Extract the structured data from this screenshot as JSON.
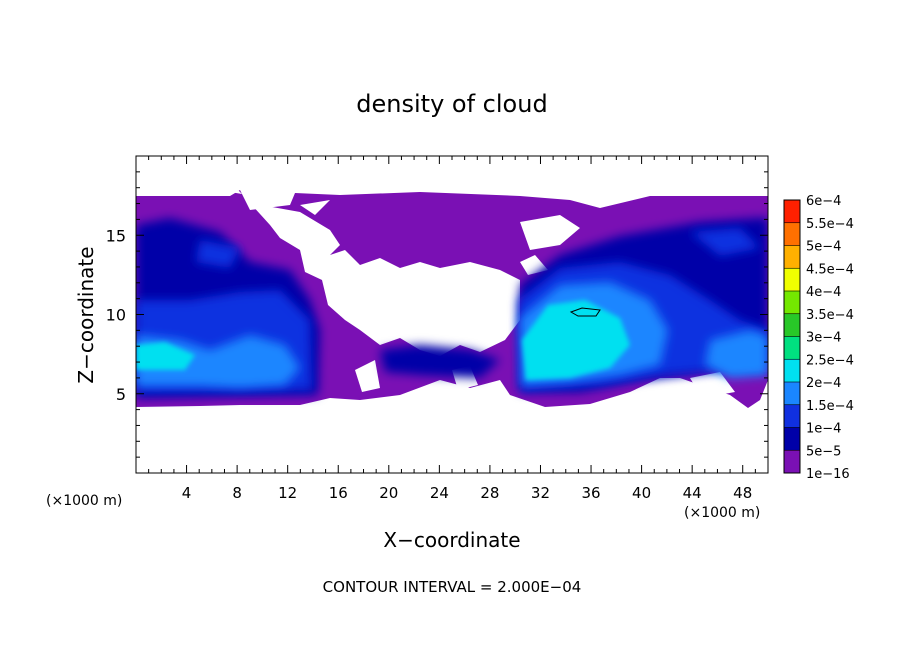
{
  "chart_data": {
    "type": "heatmap",
    "title": "density of cloud",
    "xlabel": "X−coordinate",
    "ylabel": "Z−coordinate",
    "x_unit_left": "(×1000 m)",
    "x_unit_right": "(×1000 m)",
    "xlim": [
      0,
      50
    ],
    "ylim": [
      0,
      20
    ],
    "x_ticks": [
      4,
      8,
      12,
      16,
      20,
      24,
      28,
      32,
      36,
      40,
      44,
      48
    ],
    "x_tick_labels": [
      "4",
      "8",
      "12",
      "16",
      "20",
      "24",
      "28",
      "32",
      "36",
      "40",
      "44",
      "48"
    ],
    "y_ticks": [
      5,
      10,
      15
    ],
    "y_tick_labels": [
      "5",
      "10",
      "15"
    ],
    "colorbar": {
      "levels": [
        "1e−16",
        "5e−5",
        "1e−4",
        "1.5e−4",
        "2e−4",
        "2.5e−4",
        "3e−4",
        "3.5e−4",
        "4e−4",
        "4.5e−4",
        "5e−4",
        "5.5e−4",
        "6e−4"
      ],
      "colors": [
        "#7a10b4",
        "#0000a8",
        "#1030e0",
        "#1a86ff",
        "#00e0f0",
        "#00e080",
        "#28c828",
        "#74e800",
        "#f0ff00",
        "#ffb000",
        "#ff7000",
        "#ff2000",
        "#ff8080"
      ]
    },
    "footnote": "CONTOUR INTERVAL = 2.000E−04",
    "field_description_regions": [
      {
        "level": "1e-16",
        "color": "#7a10b4",
        "extent_x": [
          0,
          50
        ],
        "extent_z": [
          4.2,
          17.4
        ]
      },
      {
        "level": "5e-5",
        "color": "#0000a8",
        "extent_x": [
          0,
          16
        ],
        "extent_z": [
          4.5,
          15.5
        ]
      },
      {
        "level": "1.5e-4",
        "color": "#1a86ff",
        "extent_x": [
          30,
          44
        ],
        "extent_z": [
          5,
          12
        ]
      },
      {
        "level": "2e-4",
        "color": "#00e0f0",
        "extent_x": [
          30.5,
          38
        ],
        "extent_z": [
          5.5,
          9.5
        ]
      }
    ]
  }
}
